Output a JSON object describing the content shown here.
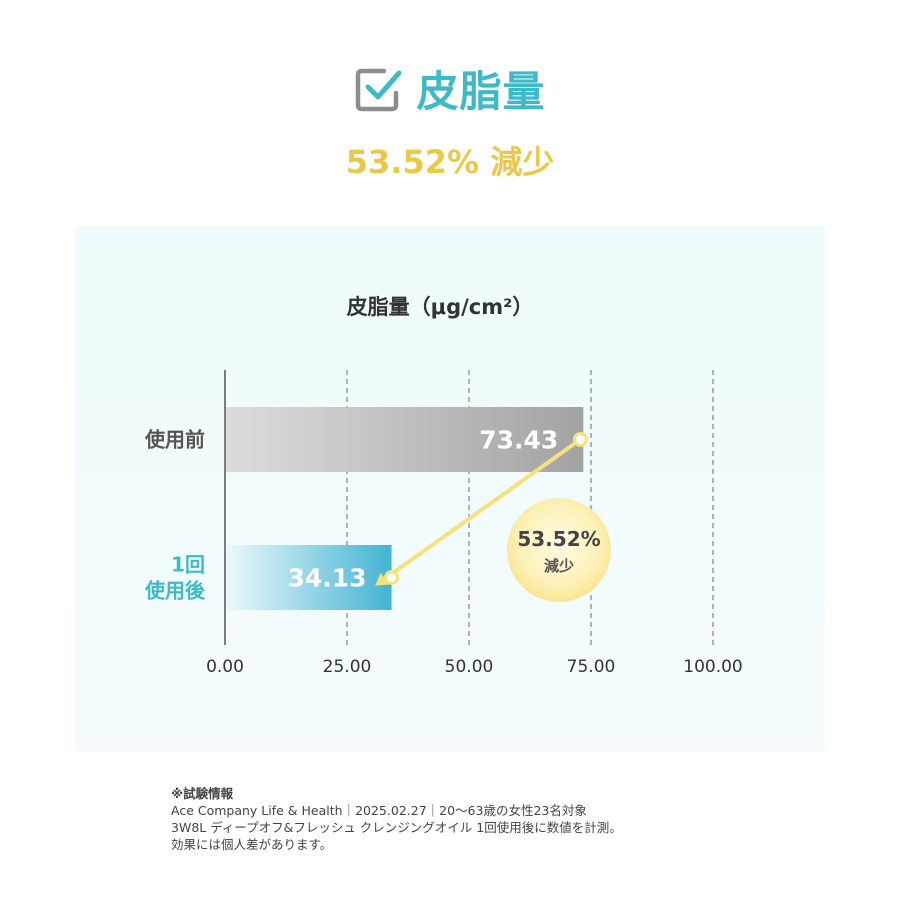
{
  "header": {
    "title": "皮脂量",
    "subtitle": "53.52% 減少",
    "icon": "checkbox-icon"
  },
  "colors": {
    "teal": "#3db9c7",
    "yellow": "#eac84a",
    "bar_before": "#a9a9a9",
    "bar_after": "#4cb8d4",
    "badge": "#fbeaa0"
  },
  "chart_data": {
    "type": "bar",
    "orientation": "horizontal",
    "title": "皮脂量（μg/cm²）",
    "categories": [
      "使用前",
      "1回\n使用後"
    ],
    "values": [
      73.43,
      34.13
    ],
    "value_labels": [
      "73.43",
      "34.13"
    ],
    "xlim": [
      0,
      100
    ],
    "xticks": [
      "0.00",
      "25.00",
      "50.00",
      "75.00",
      "100.00"
    ],
    "grid": "vertical-dashed",
    "annotation": {
      "value": "53.52%",
      "label": "減少"
    }
  },
  "notes": {
    "heading": "※試験情報",
    "lines": [
      "Ace Company Life & Health｜2025.02.27｜20〜63歳の女性23名対象",
      "3W8L ディープオフ&フレッシュ クレンジングオイル 1回使用後に数値を計測。",
      "効果には個人差があります。"
    ]
  }
}
